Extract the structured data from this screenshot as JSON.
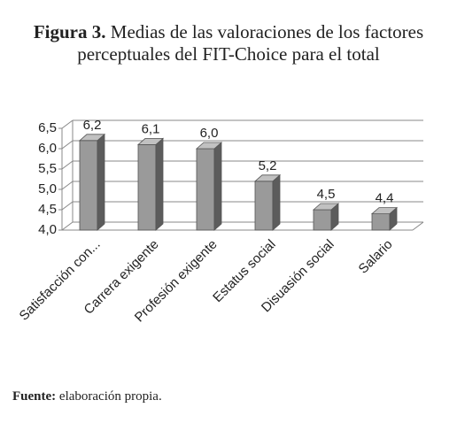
{
  "figure_label": "Figura 3.",
  "source": {
    "label": "Fuente:",
    "text": "elaboración propia."
  },
  "chart_data": {
    "type": "bar3d",
    "title": "Medias de las valoraciones de los factores perceptuales del FIT-Choice para el total",
    "categories": [
      "Satisfacción con...",
      "Carrera exigente",
      "Profesión exigente",
      "Estatus social",
      "Disuasión social",
      "Salario"
    ],
    "values": [
      6.2,
      6.1,
      6.0,
      5.2,
      4.5,
      4.4
    ],
    "value_labels": [
      "6,2",
      "6,1",
      "6,0",
      "5,2",
      "4,5",
      "4,4"
    ],
    "color": "#9a9a9a",
    "ylim": [
      4.0,
      6.5
    ],
    "yticks": [
      {
        "value": 4.0,
        "label": "4,0"
      },
      {
        "value": 4.5,
        "label": "4,5"
      },
      {
        "value": 5.0,
        "label": "5,0"
      },
      {
        "value": 5.5,
        "label": "5,5"
      },
      {
        "value": 6.0,
        "label": "6,0"
      },
      {
        "value": 6.5,
        "label": "6,5"
      }
    ],
    "grid": true
  }
}
